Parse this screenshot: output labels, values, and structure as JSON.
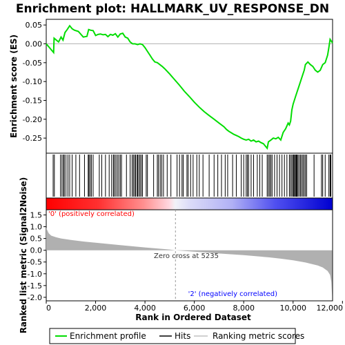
{
  "chart_data": {
    "type": "line",
    "title": "Enrichment plot: HALLMARK_UV_RESPONSE_DN",
    "top_panel": {
      "ylabel": "Enrichment score (ES)",
      "ylim": [
        -0.29,
        0.065
      ],
      "yticks": [
        0.05,
        0.0,
        -0.05,
        -0.1,
        -0.15,
        -0.2,
        -0.25
      ],
      "ytick_labels": [
        "0.05",
        "0.00",
        "-0.05",
        "-0.10",
        "-0.15",
        "-0.20",
        "-0.25"
      ],
      "series": [
        {
          "name": "Enrichment profile",
          "color": "#00dd00",
          "x": [
            0,
            300,
            320,
            500,
            600,
            680,
            760,
            850,
            950,
            1050,
            1150,
            1300,
            1500,
            1650,
            1720,
            1800,
            1900,
            2000,
            2100,
            2200,
            2300,
            2400,
            2500,
            2600,
            2700,
            2800,
            2900,
            3000,
            3100,
            3200,
            3300,
            3400,
            3500,
            3600,
            3700,
            3800,
            3900,
            4000,
            4100,
            4200,
            4300,
            4400,
            4500,
            4600,
            4700,
            4800,
            5000,
            5200,
            5400,
            5600,
            5800,
            6000,
            6200,
            6400,
            6600,
            6800,
            7000,
            7200,
            7300,
            7400,
            7500,
            7600,
            7700,
            7800,
            7900,
            8000,
            8100,
            8200,
            8300,
            8400,
            8500,
            8600,
            8700,
            8800,
            8900,
            8950,
            9000,
            9100,
            9200,
            9300,
            9400,
            9500,
            9600,
            9700,
            9800,
            9850,
            9900,
            9950,
            10000,
            10100,
            10200,
            10300,
            10400,
            10450,
            10500,
            10600,
            10700,
            10800,
            10900,
            11000,
            11100,
            11200,
            11300,
            11400,
            11450,
            11500,
            11600
          ],
          "y": [
            0.0,
            -0.023,
            0.015,
            0.005,
            0.018,
            0.01,
            0.03,
            0.038,
            0.048,
            0.04,
            0.036,
            0.033,
            0.018,
            0.02,
            0.038,
            0.036,
            0.035,
            0.022,
            0.025,
            0.026,
            0.024,
            0.025,
            0.019,
            0.025,
            0.023,
            0.027,
            0.018,
            0.026,
            0.028,
            0.018,
            0.015,
            0.005,
            0.0,
            0.0,
            -0.002,
            0.0,
            -0.002,
            -0.01,
            -0.02,
            -0.03,
            -0.04,
            -0.048,
            -0.05,
            -0.055,
            -0.06,
            -0.066,
            -0.08,
            -0.095,
            -0.11,
            -0.126,
            -0.14,
            -0.155,
            -0.168,
            -0.18,
            -0.19,
            -0.2,
            -0.21,
            -0.22,
            -0.227,
            -0.232,
            -0.236,
            -0.24,
            -0.243,
            -0.246,
            -0.25,
            -0.253,
            -0.255,
            -0.253,
            -0.258,
            -0.255,
            -0.26,
            -0.258,
            -0.262,
            -0.265,
            -0.273,
            -0.277,
            -0.26,
            -0.255,
            -0.25,
            -0.252,
            -0.248,
            -0.255,
            -0.235,
            -0.225,
            -0.21,
            -0.215,
            -0.205,
            -0.175,
            -0.16,
            -0.14,
            -0.12,
            -0.1,
            -0.08,
            -0.07,
            -0.055,
            -0.048,
            -0.055,
            -0.06,
            -0.07,
            -0.075,
            -0.07,
            -0.055,
            -0.05,
            -0.03,
            -0.01,
            0.012,
            0.002
          ]
        }
      ]
    },
    "hits_panel": {
      "series_name": "Hits",
      "hit_ranks": [
        280,
        330,
        580,
        640,
        700,
        730,
        800,
        880,
        950,
        1050,
        1200,
        1350,
        1550,
        1700,
        1730,
        1780,
        1830,
        1900,
        2150,
        2250,
        2400,
        2550,
        2650,
        2720,
        2760,
        2820,
        2880,
        2940,
        3000,
        3050,
        3250,
        3400,
        3480,
        3530,
        3580,
        3620,
        3680,
        3700,
        3750,
        3800,
        3850,
        3900,
        4050,
        4100,
        4350,
        4500,
        4550,
        4620,
        4680,
        4750,
        4900,
        5050,
        5300,
        5400,
        5500,
        5550,
        5700,
        5750,
        5850,
        5950,
        6100,
        6200,
        6350,
        6600,
        6800,
        6950,
        7100,
        7250,
        7350,
        7550,
        7700,
        7900,
        8000,
        8100,
        8150,
        8200,
        8300,
        8400,
        8550,
        8650,
        8750,
        8950,
        9000,
        9050,
        9100,
        9150,
        9250,
        9350,
        9450,
        9550,
        9650,
        9750,
        9850,
        9900,
        9950,
        10000,
        10030,
        10060,
        10100,
        10130,
        10160,
        10200,
        10250,
        10300,
        10350,
        10400,
        10450,
        10500,
        10550,
        10850,
        11150,
        11200,
        11300,
        11450,
        11500,
        11530
      ]
    },
    "color_bar": {
      "label_positive": "'0' (positively correlated)",
      "label_negative": "'2' (negatively correlated)",
      "positive_color": "#ff0000",
      "negative_color": "#0000ff"
    },
    "bottom_panel": {
      "ylabel": "Ranked list metric (Signal2Noise)",
      "xlabel": "Rank in Ordered Dataset",
      "ylim": [
        -2.15,
        1.72
      ],
      "yticks": [
        1.5,
        1.0,
        0.5,
        0.0,
        -0.5,
        -1.0,
        -1.5,
        -2.0
      ],
      "ytick_labels": [
        "1.5",
        "1.0",
        "0.5",
        "0.0",
        "-0.5",
        "-1.0",
        "-1.5",
        "-2.0"
      ],
      "zero_cross_label": "Zero cross at 5235",
      "zero_cross_rank": 5235,
      "series_name": "Ranking metric scores",
      "fill_color": "#b0b0b0",
      "x": [
        0,
        100,
        200,
        400,
        600,
        1000,
        1500,
        2000,
        3000,
        4000,
        5000,
        5235,
        6000,
        7000,
        8000,
        9000,
        9500,
        10000,
        10500,
        11000,
        11200,
        11400,
        11500,
        11550,
        11580
      ],
      "y": [
        0.95,
        0.72,
        0.62,
        0.55,
        0.5,
        0.44,
        0.37,
        0.32,
        0.22,
        0.12,
        0.03,
        0.0,
        -0.06,
        -0.14,
        -0.21,
        -0.3,
        -0.36,
        -0.43,
        -0.52,
        -0.65,
        -0.73,
        -0.88,
        -1.05,
        -1.35,
        -1.95
      ]
    },
    "xaxis": {
      "xlim": [
        0,
        11600
      ],
      "xticks": [
        0,
        2000,
        4000,
        6000,
        8000,
        10000,
        12000
      ],
      "xtick_labels": [
        "0",
        "2,000",
        "4,000",
        "6,000",
        "8,000",
        "10,000",
        "12,000"
      ]
    },
    "legend": {
      "placement": "bottom",
      "entries": [
        {
          "label": "Enrichment profile",
          "color": "#00dd00"
        },
        {
          "label": "Hits",
          "color": "#000000"
        },
        {
          "label": "Ranking metric scores",
          "color": "#c0c0c0"
        }
      ]
    }
  }
}
